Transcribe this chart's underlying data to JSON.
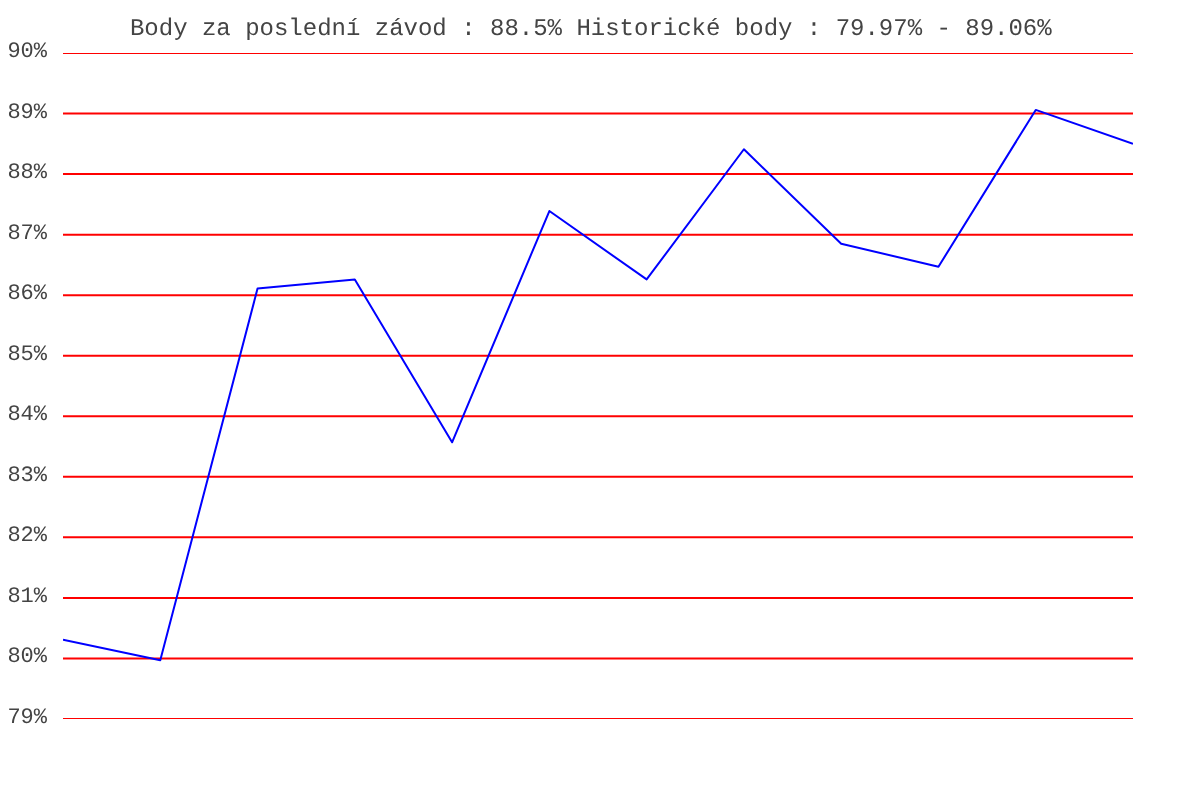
{
  "chart_data": {
    "type": "line",
    "title": "Body za poslední závod : 88.5%  Historické body : 79.97% - 89.06%",
    "categories": [
      null,
      null,
      null,
      null,
      null,
      null,
      null,
      null,
      null,
      null,
      null,
      null
    ],
    "series": [
      {
        "color": "#0000ff",
        "values": [
          80.31,
          79.97,
          86.11,
          86.26,
          83.57,
          87.39,
          86.26,
          88.41,
          86.85,
          86.47,
          89.06,
          88.5
        ]
      }
    ],
    "ylim": [
      79,
      90
    ],
    "yticks": [
      {
        "value": 79,
        "label": "79%"
      },
      {
        "value": 80,
        "label": "80%"
      },
      {
        "value": 81,
        "label": "81%"
      },
      {
        "value": 82,
        "label": "82%"
      },
      {
        "value": 83,
        "label": "83%"
      },
      {
        "value": 84,
        "label": "84%"
      },
      {
        "value": 85,
        "label": "85%"
      },
      {
        "value": 86,
        "label": "86%"
      },
      {
        "value": 87,
        "label": "87%"
      },
      {
        "value": 88,
        "label": "88%"
      },
      {
        "value": 89,
        "label": "89%"
      },
      {
        "value": 90,
        "label": "90%"
      }
    ],
    "grid": "y",
    "marker": "none",
    "line_style": "solid"
  }
}
